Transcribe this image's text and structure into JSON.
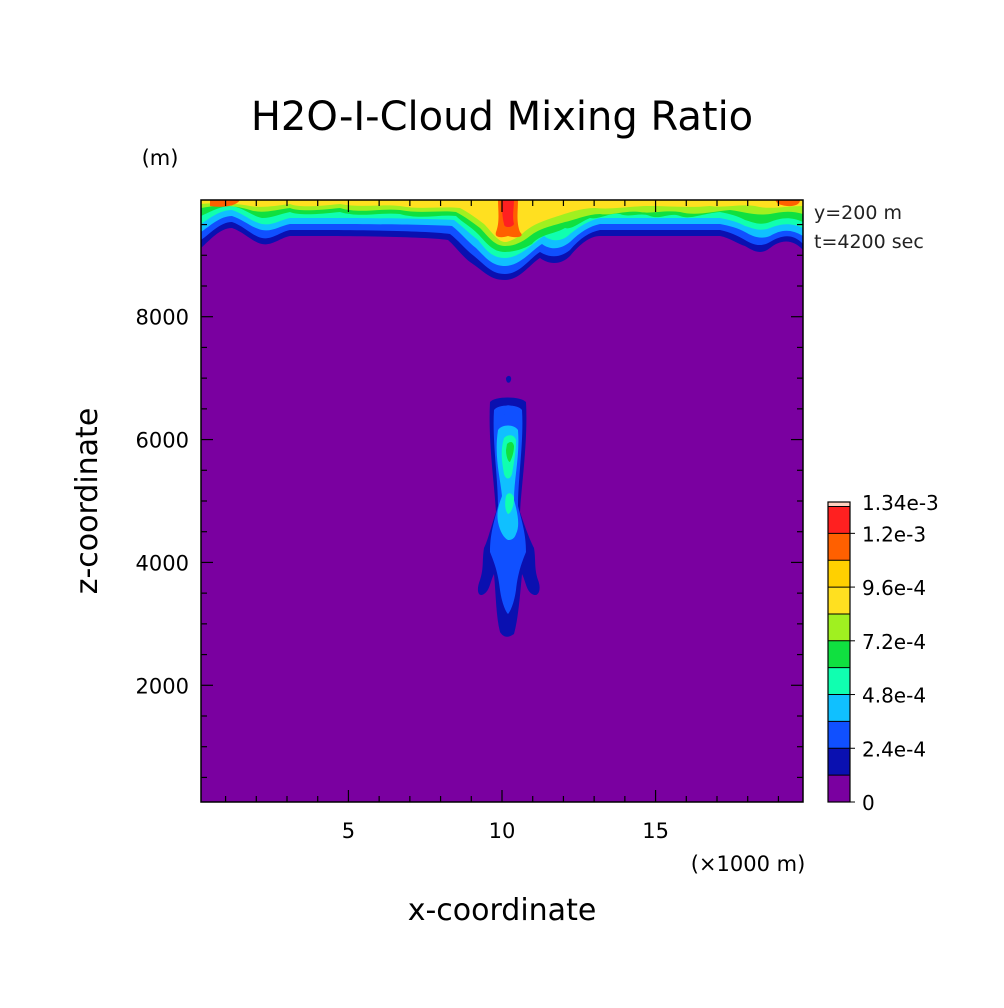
{
  "chart_data": {
    "type": "contour",
    "title": "H2O-I-Cloud Mixing Ratio",
    "xlabel": "x-coordinate",
    "ylabel": "z-coordinate",
    "x_unit": "(×1000 m)",
    "y_unit": "(m)",
    "annotations": [
      "y=200 m",
      "t=4200 sec"
    ],
    "xlim": [
      0.2,
      19.8
    ],
    "ylim": [
      100,
      9900
    ],
    "x_ticks": [
      "5",
      "10",
      "15"
    ],
    "x_tick_values": [
      5,
      10,
      15
    ],
    "y_ticks": [
      "2000",
      "4000",
      "6000",
      "8000"
    ],
    "y_tick_values": [
      2000,
      4000,
      6000,
      8000
    ],
    "grid": false,
    "background_color": "#7a00a0",
    "colorbar": {
      "max_label": "1.34e-3",
      "labels": [
        "0",
        "2.4e-4",
        "4.8e-4",
        "7.2e-4",
        "9.6e-4",
        "1.2e-3"
      ],
      "label_values": [
        0,
        0.00024,
        0.00048,
        0.00072,
        0.00096,
        0.0012
      ],
      "levels": [
        0,
        0.00012,
        0.00024,
        0.00036,
        0.00048,
        0.0006,
        0.00072,
        0.00084,
        0.00096,
        0.00108,
        0.0012,
        0.00132
      ],
      "colors": [
        "#7a00a0",
        "#0a10b0",
        "#1050ff",
        "#10c0ff",
        "#10ffb0",
        "#10e040",
        "#a0f020",
        "#ffe020",
        "#ffd000",
        "#ff6000",
        "#ff2020",
        "#ffd0c0"
      ]
    },
    "features": [
      {
        "name": "upper cloud layer",
        "x_range": [
          0.2,
          19.8
        ],
        "z_range": [
          8700,
          9900
        ],
        "max_level": "1.2e-3 to 1.34e-3",
        "center_x": 10.2
      },
      {
        "name": "central column",
        "x_range": [
          9.3,
          11.1
        ],
        "z_range": [
          2800,
          7050
        ],
        "max_level": "6e-4 to 7.2e-4",
        "center_x": 10.2
      }
    ]
  }
}
